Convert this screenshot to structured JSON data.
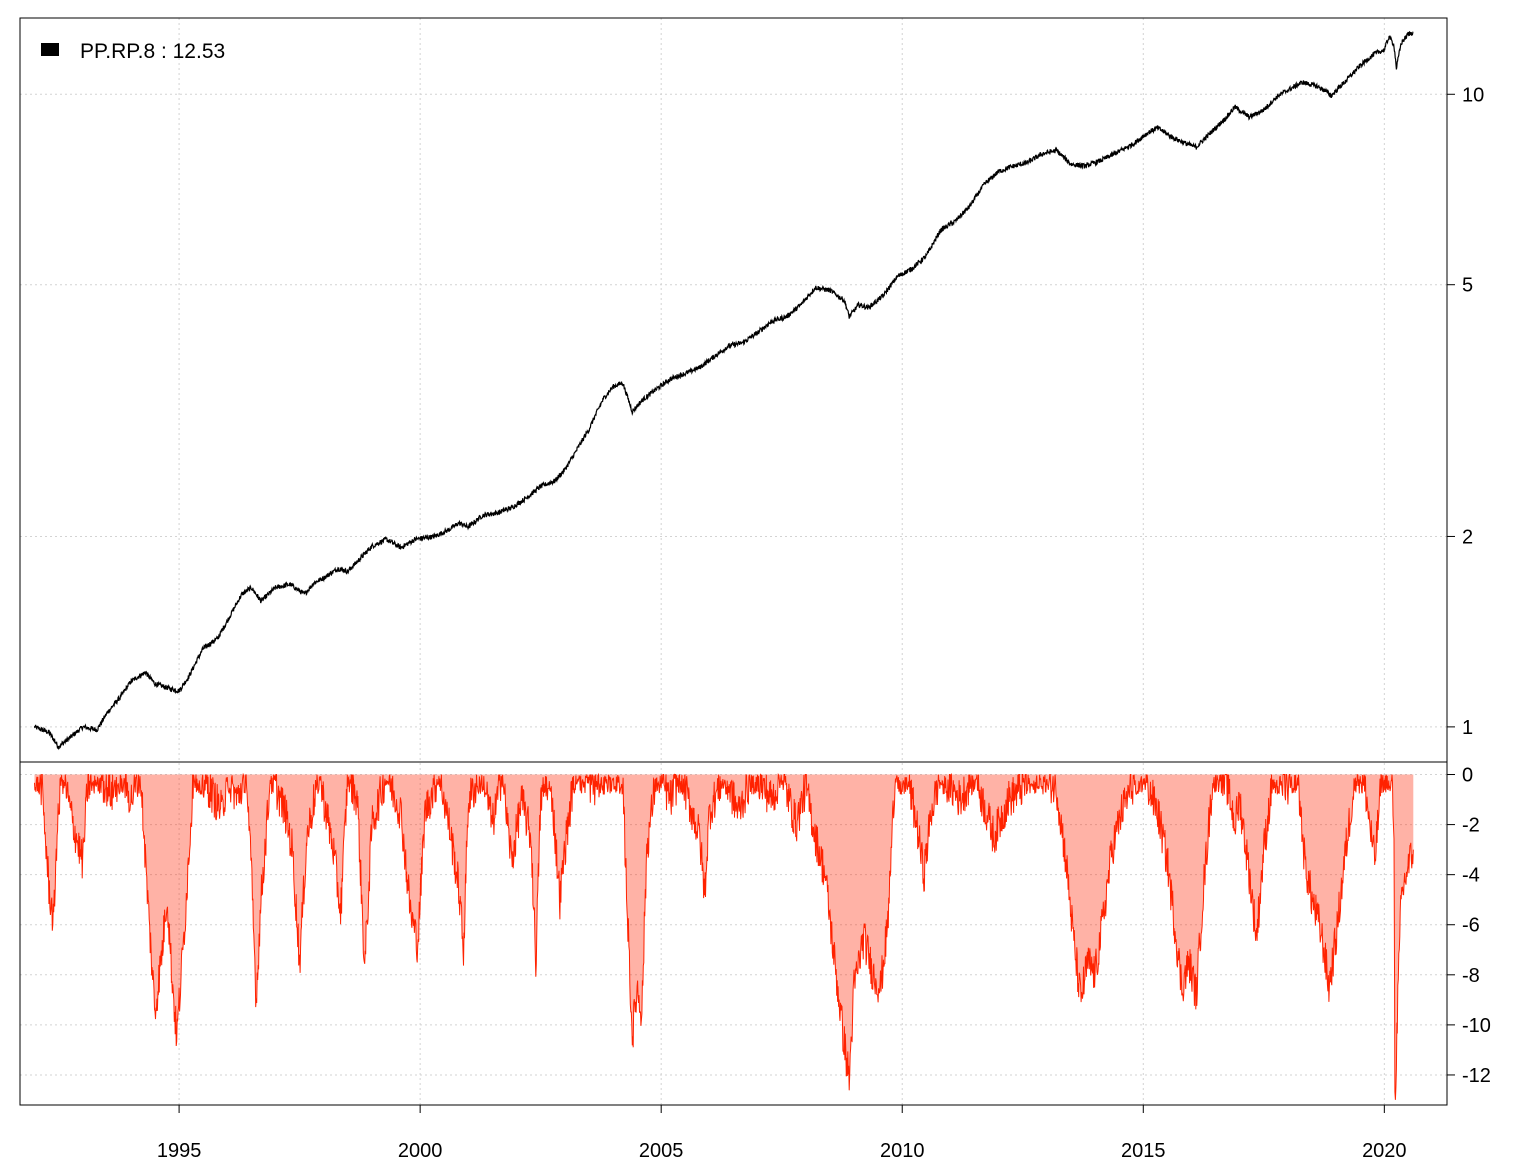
{
  "chart_data": [
    {
      "type": "line",
      "panel": "performance",
      "title": "",
      "y_scale": "log",
      "ylim": [
        0.88,
        13.2
      ],
      "xlim": [
        1991.7,
        2021.3
      ],
      "legend": {
        "placement": "top-left",
        "label": "PP.RP.8 : 12.53",
        "color": "#000000"
      },
      "y_ticks": [
        1,
        2,
        5,
        10
      ],
      "x_ticks": [
        1995,
        2000,
        2005,
        2010,
        2015,
        2020
      ],
      "x_tick_labels": [
        "1995",
        "2000",
        "2005",
        "2010",
        "2015",
        "2020"
      ],
      "grid": true,
      "series": [
        {
          "color": "#000000",
          "points": [
            [
              1992.0,
              1.0
            ],
            [
              1992.3,
              0.98
            ],
            [
              1992.5,
              0.93
            ],
            [
              1992.8,
              0.97
            ],
            [
              1993.0,
              1.0
            ],
            [
              1993.3,
              0.99
            ],
            [
              1993.5,
              1.05
            ],
            [
              1993.8,
              1.12
            ],
            [
              1994.0,
              1.18
            ],
            [
              1994.3,
              1.22
            ],
            [
              1994.5,
              1.17
            ],
            [
              1994.8,
              1.15
            ],
            [
              1995.0,
              1.14
            ],
            [
              1995.2,
              1.2
            ],
            [
              1995.5,
              1.33
            ],
            [
              1995.8,
              1.38
            ],
            [
              1996.0,
              1.47
            ],
            [
              1996.3,
              1.62
            ],
            [
              1996.5,
              1.66
            ],
            [
              1996.7,
              1.58
            ],
            [
              1997.0,
              1.66
            ],
            [
              1997.3,
              1.68
            ],
            [
              1997.6,
              1.62
            ],
            [
              1997.8,
              1.69
            ],
            [
              1998.0,
              1.72
            ],
            [
              1998.3,
              1.78
            ],
            [
              1998.5,
              1.76
            ],
            [
              1998.8,
              1.86
            ],
            [
              1999.0,
              1.93
            ],
            [
              1999.3,
              1.98
            ],
            [
              1999.6,
              1.92
            ],
            [
              1999.9,
              1.98
            ],
            [
              2000.3,
              2.0
            ],
            [
              2000.6,
              2.05
            ],
            [
              2000.8,
              2.1
            ],
            [
              2001.0,
              2.07
            ],
            [
              2001.3,
              2.16
            ],
            [
              2001.6,
              2.18
            ],
            [
              2001.9,
              2.22
            ],
            [
              2002.2,
              2.3
            ],
            [
              2002.5,
              2.4
            ],
            [
              2002.8,
              2.45
            ],
            [
              2003.0,
              2.55
            ],
            [
              2003.2,
              2.7
            ],
            [
              2003.5,
              2.95
            ],
            [
              2003.8,
              3.3
            ],
            [
              2004.0,
              3.45
            ],
            [
              2004.2,
              3.5
            ],
            [
              2004.4,
              3.15
            ],
            [
              2004.6,
              3.28
            ],
            [
              2004.9,
              3.42
            ],
            [
              2005.2,
              3.55
            ],
            [
              2005.5,
              3.62
            ],
            [
              2005.8,
              3.7
            ],
            [
              2006.1,
              3.85
            ],
            [
              2006.4,
              4.0
            ],
            [
              2006.7,
              4.05
            ],
            [
              2007.0,
              4.2
            ],
            [
              2007.3,
              4.38
            ],
            [
              2007.6,
              4.45
            ],
            [
              2007.9,
              4.65
            ],
            [
              2008.2,
              4.95
            ],
            [
              2008.5,
              4.9
            ],
            [
              2008.8,
              4.72
            ],
            [
              2008.9,
              4.45
            ],
            [
              2009.1,
              4.65
            ],
            [
              2009.3,
              4.6
            ],
            [
              2009.6,
              4.8
            ],
            [
              2009.9,
              5.15
            ],
            [
              2010.2,
              5.3
            ],
            [
              2010.5,
              5.55
            ],
            [
              2010.8,
              6.1
            ],
            [
              2011.1,
              6.3
            ],
            [
              2011.4,
              6.65
            ],
            [
              2011.7,
              7.2
            ],
            [
              2012.0,
              7.55
            ],
            [
              2012.3,
              7.7
            ],
            [
              2012.6,
              7.8
            ],
            [
              2012.9,
              8.05
            ],
            [
              2013.2,
              8.15
            ],
            [
              2013.5,
              7.75
            ],
            [
              2013.8,
              7.7
            ],
            [
              2014.1,
              7.85
            ],
            [
              2014.4,
              8.05
            ],
            [
              2014.8,
              8.35
            ],
            [
              2015.1,
              8.7
            ],
            [
              2015.3,
              8.85
            ],
            [
              2015.6,
              8.55
            ],
            [
              2015.9,
              8.35
            ],
            [
              2016.1,
              8.25
            ],
            [
              2016.4,
              8.7
            ],
            [
              2016.7,
              9.15
            ],
            [
              2016.9,
              9.55
            ],
            [
              2017.2,
              9.2
            ],
            [
              2017.5,
              9.45
            ],
            [
              2017.8,
              9.95
            ],
            [
              2018.1,
              10.25
            ],
            [
              2018.3,
              10.45
            ],
            [
              2018.6,
              10.3
            ],
            [
              2018.8,
              10.1
            ],
            [
              2018.9,
              9.95
            ],
            [
              2019.2,
              10.5
            ],
            [
              2019.5,
              11.1
            ],
            [
              2019.8,
              11.6
            ],
            [
              2020.0,
              11.75
            ],
            [
              2020.1,
              12.35
            ],
            [
              2020.2,
              11.95
            ],
            [
              2020.25,
              11.0
            ],
            [
              2020.35,
              12.05
            ],
            [
              2020.5,
              12.45
            ],
            [
              2020.6,
              12.53
            ]
          ]
        }
      ]
    },
    {
      "type": "area",
      "panel": "drawdown",
      "title": "",
      "ylim": [
        -13.2,
        0.5
      ],
      "y_ticks": [
        0,
        -2,
        -4,
        -6,
        -8,
        -10,
        -12
      ],
      "y_tick_labels": [
        "0",
        "-2",
        "-4",
        "-6",
        "-8",
        "-10",
        "-12"
      ],
      "grid": true,
      "series": [
        {
          "color": "#ff2200",
          "points": [
            [
              1992.0,
              0
            ],
            [
              1992.15,
              -0.5
            ],
            [
              1992.3,
              -4.5
            ],
            [
              1992.4,
              -6.0
            ],
            [
              1992.45,
              -3.0
            ],
            [
              1992.55,
              -0.3
            ],
            [
              1992.6,
              0
            ],
            [
              1992.8,
              -2.0
            ],
            [
              1993.0,
              -3.5
            ],
            [
              1993.1,
              -0.5
            ],
            [
              1993.3,
              0
            ],
            [
              1993.6,
              -0.8
            ],
            [
              1993.8,
              0
            ],
            [
              1994.0,
              -1.0
            ],
            [
              1994.2,
              0
            ],
            [
              1994.35,
              -5.0
            ],
            [
              1994.5,
              -9.5
            ],
            [
              1994.65,
              -7.0
            ],
            [
              1994.75,
              -4.8
            ],
            [
              1994.85,
              -8.0
            ],
            [
              1994.95,
              -10.5
            ],
            [
              1995.1,
              -6.5
            ],
            [
              1995.3,
              0
            ],
            [
              1995.6,
              -0.5
            ],
            [
              1995.9,
              -1.5
            ],
            [
              1996.0,
              0
            ],
            [
              1996.2,
              -1.0
            ],
            [
              1996.4,
              0
            ],
            [
              1996.5,
              -4.0
            ],
            [
              1996.6,
              -9.0
            ],
            [
              1996.7,
              -5.0
            ],
            [
              1996.9,
              0
            ],
            [
              1997.2,
              -1.5
            ],
            [
              1997.35,
              -3.0
            ],
            [
              1997.5,
              -7.5
            ],
            [
              1997.65,
              -2.5
            ],
            [
              1997.9,
              0
            ],
            [
              1998.2,
              -3.0
            ],
            [
              1998.35,
              -5.5
            ],
            [
              1998.5,
              0
            ],
            [
              1998.7,
              -1.0
            ],
            [
              1998.85,
              -7.8
            ],
            [
              1999.0,
              -2.0
            ],
            [
              1999.3,
              0
            ],
            [
              1999.6,
              -1.5
            ],
            [
              1999.8,
              -5.5
            ],
            [
              1999.95,
              -6.8
            ],
            [
              2000.1,
              -1.5
            ],
            [
              2000.4,
              0
            ],
            [
              2000.6,
              -2.0
            ],
            [
              2000.8,
              -4.5
            ],
            [
              2000.9,
              -7.0
            ],
            [
              2001.0,
              -1.0
            ],
            [
              2001.3,
              0
            ],
            [
              2001.5,
              -2.0
            ],
            [
              2001.7,
              0
            ],
            [
              2001.9,
              -3.5
            ],
            [
              2002.1,
              -1.0
            ],
            [
              2002.3,
              -2.5
            ],
            [
              2002.4,
              -7.5
            ],
            [
              2002.5,
              -1.0
            ],
            [
              2002.7,
              0
            ],
            [
              2002.9,
              -5.0
            ],
            [
              2003.0,
              -3.0
            ],
            [
              2003.2,
              0
            ],
            [
              2003.6,
              -0.5
            ],
            [
              2003.9,
              0
            ],
            [
              2004.2,
              -0.2
            ],
            [
              2004.3,
              -5.5
            ],
            [
              2004.4,
              -10.5
            ],
            [
              2004.5,
              -8.5
            ],
            [
              2004.6,
              -9.5
            ],
            [
              2004.7,
              -3.0
            ],
            [
              2004.9,
              0
            ],
            [
              2005.2,
              -1.0
            ],
            [
              2005.4,
              0
            ],
            [
              2005.8,
              -2.5
            ],
            [
              2005.9,
              -4.8
            ],
            [
              2006.0,
              -1.5
            ],
            [
              2006.3,
              0
            ],
            [
              2006.6,
              -1.5
            ],
            [
              2006.9,
              0
            ],
            [
              2007.3,
              -1.0
            ],
            [
              2007.5,
              0
            ],
            [
              2007.8,
              -2.0
            ],
            [
              2008.0,
              -0.5
            ],
            [
              2008.2,
              -2.5
            ],
            [
              2008.4,
              -4.0
            ],
            [
              2008.6,
              -7.5
            ],
            [
              2008.75,
              -10.0
            ],
            [
              2008.9,
              -12.2
            ],
            [
              2009.0,
              -8.5
            ],
            [
              2009.2,
              -6.5
            ],
            [
              2009.4,
              -8.0
            ],
            [
              2009.55,
              -8.5
            ],
            [
              2009.7,
              -6.0
            ],
            [
              2009.85,
              0
            ],
            [
              2010.1,
              0
            ],
            [
              2010.3,
              -2.0
            ],
            [
              2010.45,
              -4.0
            ],
            [
              2010.6,
              -1.5
            ],
            [
              2010.8,
              0
            ],
            [
              2011.2,
              -1.0
            ],
            [
              2011.5,
              0
            ],
            [
              2011.9,
              -2.5
            ],
            [
              2012.2,
              -1.0
            ],
            [
              2012.5,
              -0.5
            ],
            [
              2012.8,
              0
            ],
            [
              2013.2,
              -0.5
            ],
            [
              2013.4,
              -3.5
            ],
            [
              2013.55,
              -6.5
            ],
            [
              2013.7,
              -9.0
            ],
            [
              2013.85,
              -7.5
            ],
            [
              2014.0,
              -8.0
            ],
            [
              2014.15,
              -6.0
            ],
            [
              2014.35,
              -3.0
            ],
            [
              2014.55,
              -1.5
            ],
            [
              2014.75,
              -0.5
            ],
            [
              2015.0,
              0
            ],
            [
              2015.3,
              -1.5
            ],
            [
              2015.5,
              -3.5
            ],
            [
              2015.65,
              -6.0
            ],
            [
              2015.8,
              -8.5
            ],
            [
              2015.95,
              -7.5
            ],
            [
              2016.1,
              -8.8
            ],
            [
              2016.25,
              -4.5
            ],
            [
              2016.45,
              0
            ],
            [
              2016.75,
              -0.5
            ],
            [
              2016.9,
              -2.0
            ],
            [
              2017.0,
              -1.0
            ],
            [
              2017.2,
              -4.0
            ],
            [
              2017.35,
              -6.5
            ],
            [
              2017.5,
              -3.0
            ],
            [
              2017.7,
              0
            ],
            [
              2018.0,
              -0.5
            ],
            [
              2018.2,
              0
            ],
            [
              2018.35,
              -3.5
            ],
            [
              2018.5,
              -5.0
            ],
            [
              2018.65,
              -6.0
            ],
            [
              2018.75,
              -7.0
            ],
            [
              2018.85,
              -8.5
            ],
            [
              2019.0,
              -6.5
            ],
            [
              2019.2,
              -3.0
            ],
            [
              2019.4,
              0
            ],
            [
              2019.6,
              -0.5
            ],
            [
              2019.8,
              -3.5
            ],
            [
              2019.95,
              0
            ],
            [
              2020.15,
              -0.2
            ],
            [
              2020.2,
              -2.0
            ],
            [
              2020.22,
              -13.2
            ],
            [
              2020.28,
              -9.0
            ],
            [
              2020.35,
              -5.0
            ],
            [
              2020.45,
              -4.0
            ],
            [
              2020.6,
              -3.0
            ]
          ]
        }
      ]
    }
  ]
}
